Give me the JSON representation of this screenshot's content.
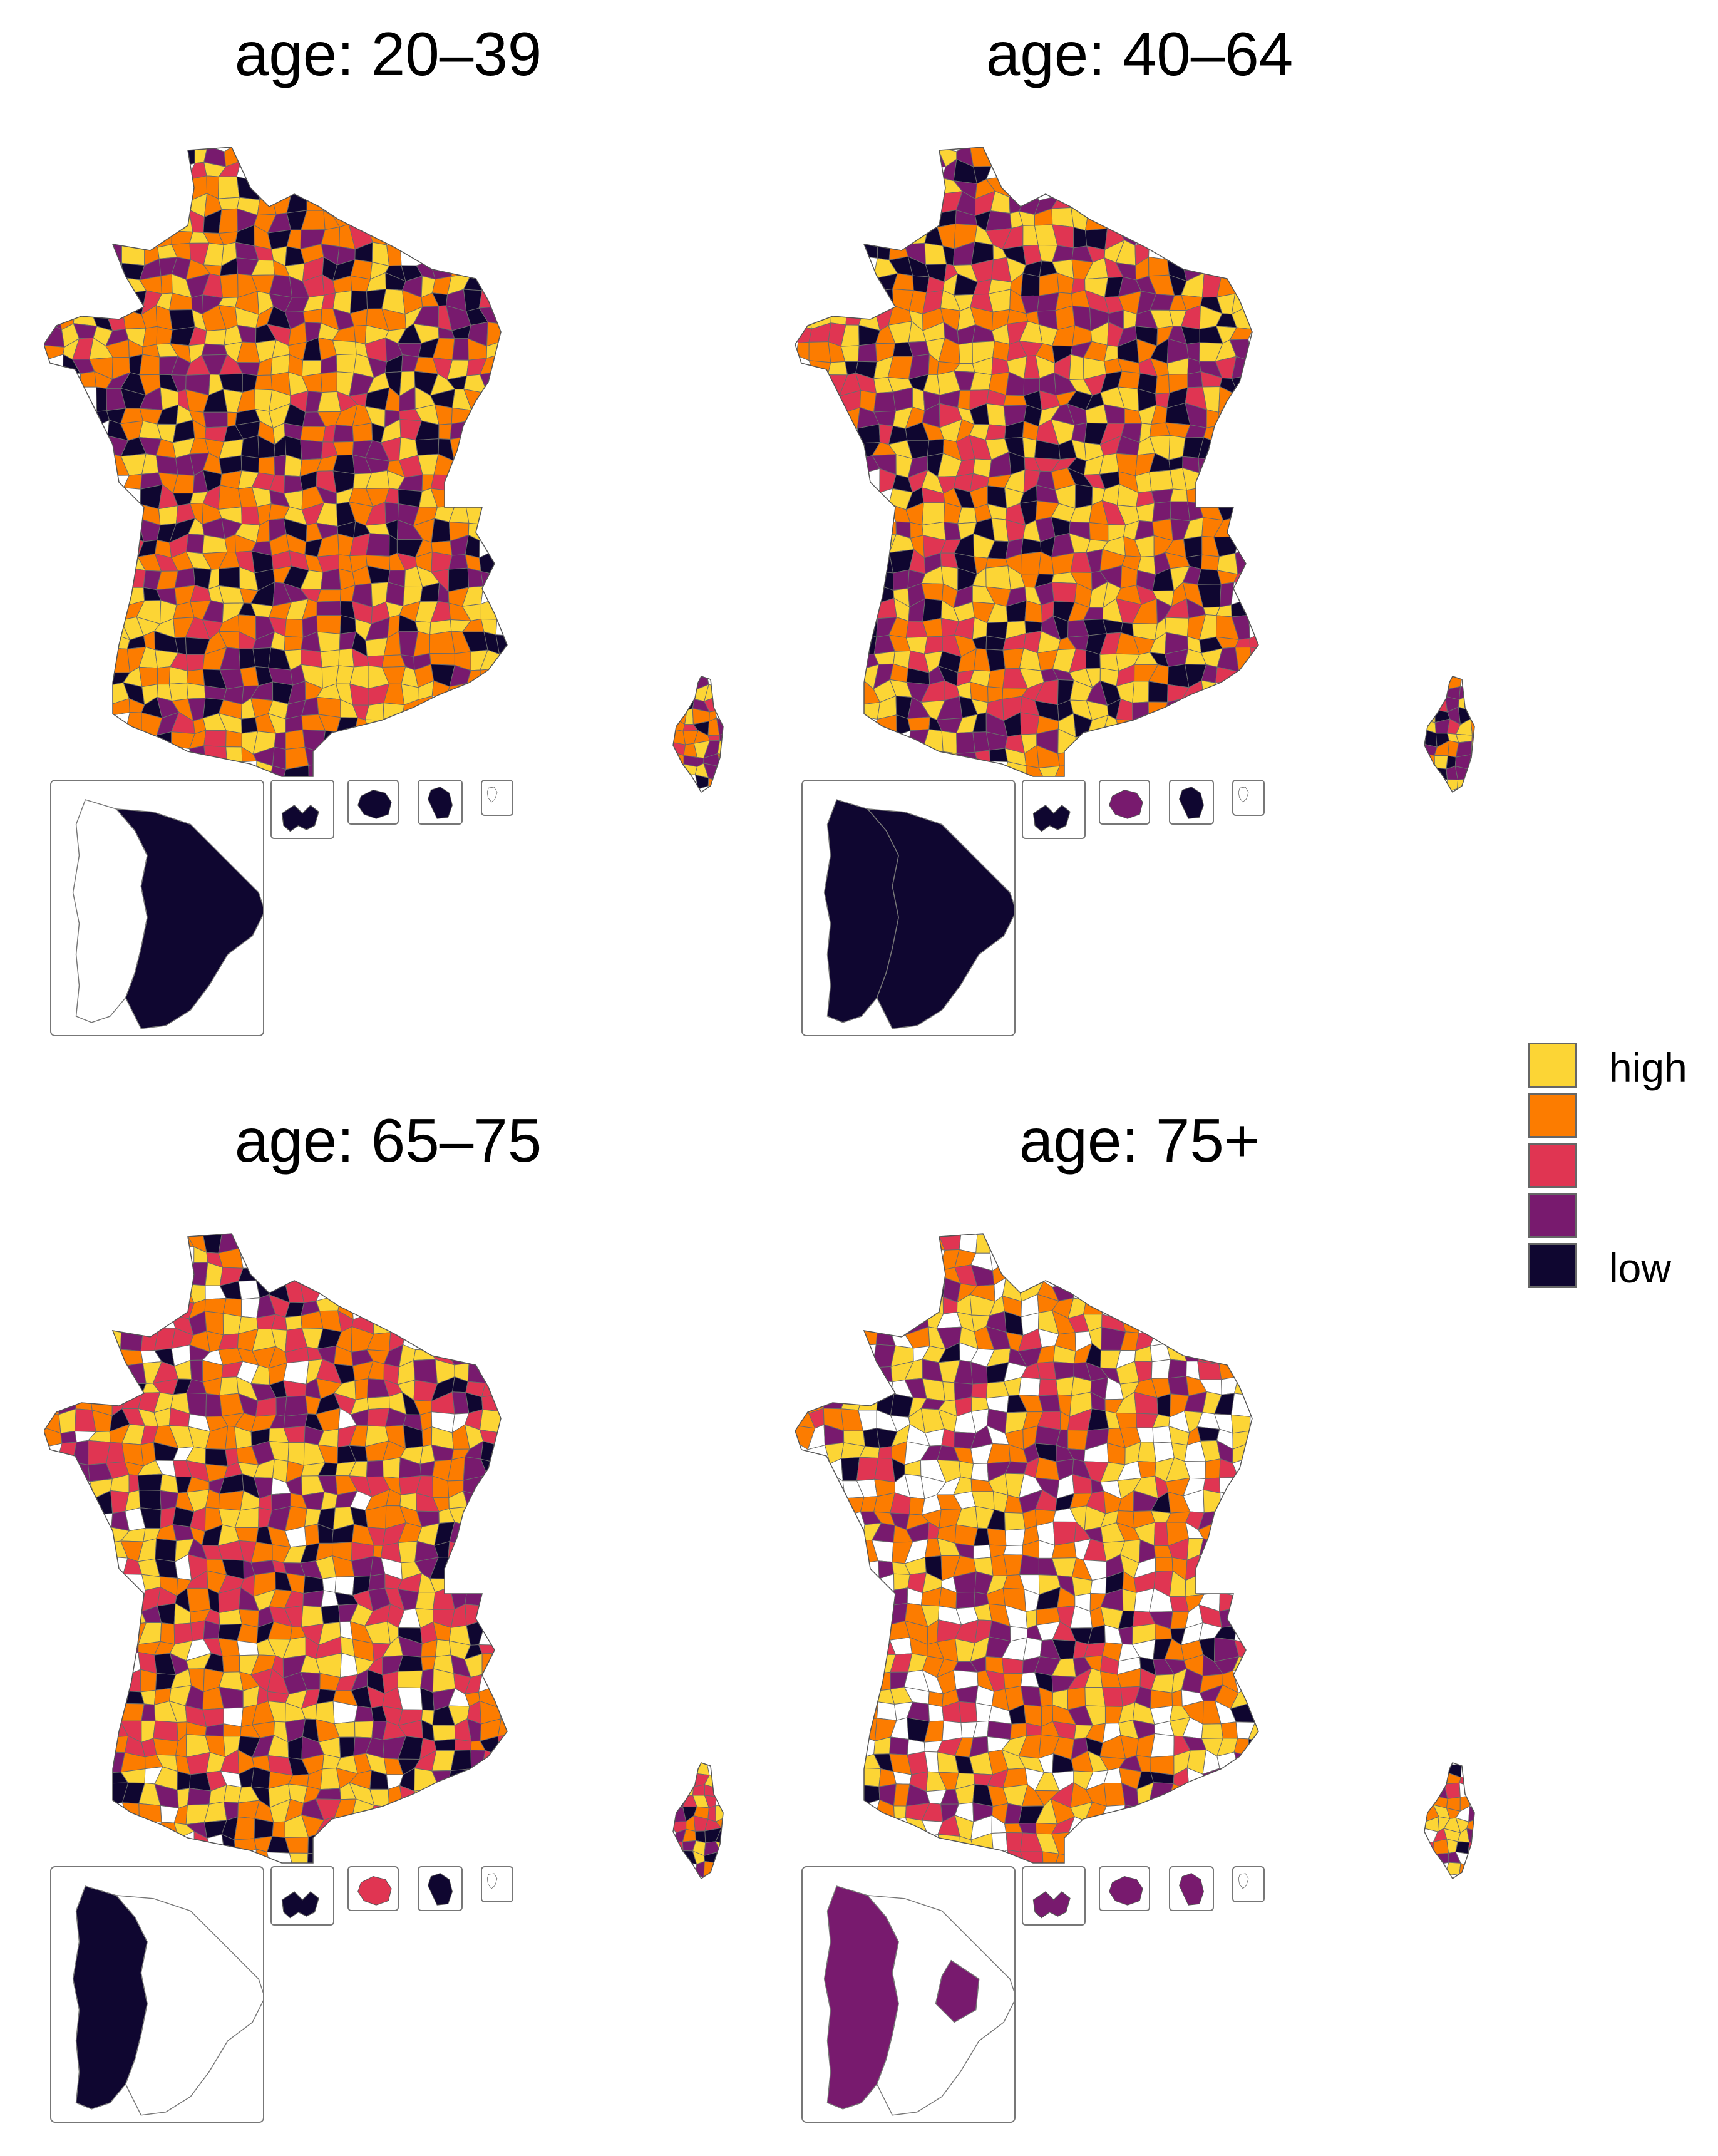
{
  "panels": [
    {
      "title": "age: 20–39",
      "guiana_fill": [
        "#0f0630",
        "#ffffff"
      ],
      "dom_fills": [
        "#0f0630",
        "#0f0630",
        "#0f0630",
        "#ffffff"
      ]
    },
    {
      "title": "age: 40–64",
      "guiana_fill": [
        "#0f0630",
        "#0f0630"
      ],
      "dom_fills": [
        "#0f0630",
        "#781a6e",
        "#0f0630",
        "#ffffff"
      ]
    },
    {
      "title": "age: 65–75",
      "guiana_fill": [
        "#0f0630",
        "#ffffff"
      ],
      "dom_fills": [
        "#0f0630",
        "#e03552",
        "#0f0630",
        "#ffffff"
      ]
    },
    {
      "title": "age: 75+",
      "guiana_fill": [
        "#781a6e",
        "#ffffff"
      ],
      "dom_fills": [
        "#781a6e",
        "#781a6e",
        "#781a6e",
        "#ffffff"
      ]
    }
  ],
  "legend": {
    "items": [
      {
        "label": "high",
        "color": "#fcd535"
      },
      {
        "label": "",
        "color": "#fc7c00"
      },
      {
        "label": "",
        "color": "#e03552"
      },
      {
        "label": "",
        "color": "#781a6e"
      },
      {
        "label": "low",
        "color": "#0f0630"
      }
    ]
  },
  "palette": {
    "high": "#fcd535",
    "mid_high": "#fc7c00",
    "mid": "#e03552",
    "mid_low": "#781a6e",
    "low": "#0f0630",
    "missing": "#ffffff"
  },
  "panel_weights": [
    {
      "#fcd535": 0.24,
      "#fc7c00": 0.3,
      "#e03552": 0.12,
      "#781a6e": 0.18,
      "#0f0630": 0.16,
      "#ffffff": 0.0
    },
    {
      "#fcd535": 0.28,
      "#fc7c00": 0.24,
      "#e03552": 0.14,
      "#781a6e": 0.16,
      "#0f0630": 0.18,
      "#ffffff": 0.0
    },
    {
      "#fcd535": 0.22,
      "#fc7c00": 0.26,
      "#e03552": 0.18,
      "#781a6e": 0.16,
      "#0f0630": 0.12,
      "#ffffff": 0.06
    },
    {
      "#fcd535": 0.2,
      "#fc7c00": 0.26,
      "#e03552": 0.12,
      "#781a6e": 0.16,
      "#0f0630": 0.06,
      "#ffffff": 0.2
    }
  ]
}
